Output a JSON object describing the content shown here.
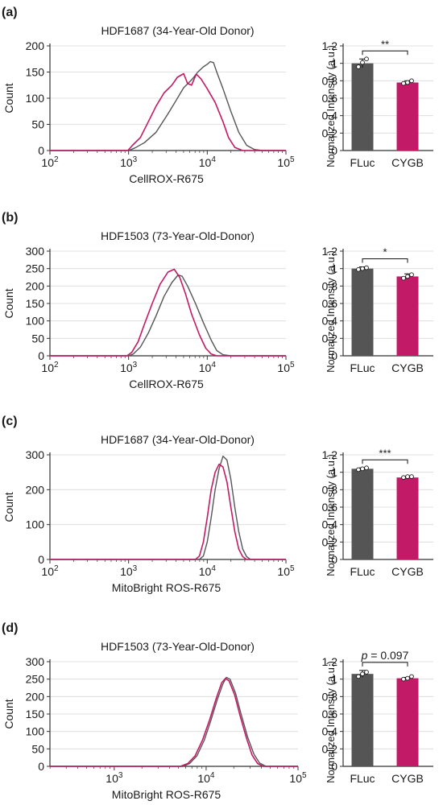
{
  "colors": {
    "fluc": "#555555",
    "cygb": "#c21a66",
    "axis": "#333333",
    "grid": "#d9d9d9"
  },
  "chart_data": [
    {
      "panel": "(a)",
      "histogram": {
        "type": "line",
        "title": "HDF1687 (34-Year-Old Donor)",
        "xlabel": "CellROX-R675",
        "ylabel": "Count",
        "xscale": "log",
        "xlim_log10": [
          2,
          5
        ],
        "ylim": [
          0,
          200
        ],
        "yticks": [
          0,
          50,
          100,
          150,
          200
        ],
        "xticks": [
          {
            "base": "10",
            "exp": "2",
            "log": 2
          },
          {
            "base": "10",
            "exp": "3",
            "log": 3
          },
          {
            "base": "10",
            "exp": "4",
            "log": 4
          },
          {
            "base": "10",
            "exp": "5",
            "log": 5
          }
        ],
        "grid": "horizontal",
        "series": [
          {
            "key": "fluc",
            "points": [
              [
                2.0,
                0
              ],
              [
                3.0,
                0
              ],
              [
                3.08,
                5
              ],
              [
                3.2,
                15
              ],
              [
                3.35,
                35
              ],
              [
                3.5,
                70
              ],
              [
                3.6,
                95
              ],
              [
                3.7,
                120
              ],
              [
                3.8,
                135
              ],
              [
                3.88,
                150
              ],
              [
                3.95,
                160
              ],
              [
                4.0,
                165
              ],
              [
                4.04,
                170
              ],
              [
                4.08,
                168
              ],
              [
                4.12,
                150
              ],
              [
                4.2,
                118
              ],
              [
                4.3,
                75
              ],
              [
                4.4,
                35
              ],
              [
                4.5,
                10
              ],
              [
                4.6,
                2
              ],
              [
                4.7,
                0
              ],
              [
                5.0,
                0
              ]
            ]
          },
          {
            "key": "cygb",
            "points": [
              [
                2.0,
                0
              ],
              [
                2.99,
                0
              ],
              [
                3.05,
                10
              ],
              [
                3.15,
                25
              ],
              [
                3.25,
                55
              ],
              [
                3.35,
                85
              ],
              [
                3.45,
                110
              ],
              [
                3.55,
                125
              ],
              [
                3.62,
                140
              ],
              [
                3.7,
                147
              ],
              [
                3.75,
                128
              ],
              [
                3.8,
                125
              ],
              [
                3.86,
                146
              ],
              [
                3.92,
                137
              ],
              [
                4.0,
                118
              ],
              [
                4.1,
                92
              ],
              [
                4.2,
                55
              ],
              [
                4.27,
                25
              ],
              [
                4.35,
                6
              ],
              [
                4.45,
                0
              ],
              [
                5.0,
                0
              ]
            ]
          }
        ]
      },
      "bar": {
        "type": "bar",
        "categories": [
          "FLuc",
          "CYGB"
        ],
        "values": [
          1.0,
          0.78
        ],
        "errors": [
          0.05,
          0.02
        ],
        "dots": [
          [
            0.96,
            1.01,
            1.05
          ],
          [
            0.77,
            0.78,
            0.8
          ]
        ],
        "ylabel": "Normalized Intensity (a.u.)",
        "ylim": [
          0,
          1.2
        ],
        "yticks": [
          "0",
          "0.2",
          "0.4",
          "0.6",
          "0.8",
          "1",
          "1.2"
        ],
        "significance": "**"
      }
    },
    {
      "panel": "(b)",
      "histogram": {
        "type": "line",
        "title": "HDF1503 (73-Year-Old-Donor)",
        "xlabel": "CellROX-R675",
        "ylabel": "Count",
        "xscale": "log",
        "xlim_log10": [
          2,
          5
        ],
        "ylim": [
          0,
          300
        ],
        "yticks": [
          0,
          50,
          100,
          150,
          200,
          250,
          300
        ],
        "xticks": [
          {
            "base": "10",
            "exp": "2",
            "log": 2
          },
          {
            "base": "10",
            "exp": "3",
            "log": 3
          },
          {
            "base": "10",
            "exp": "4",
            "log": 4
          },
          {
            "base": "10",
            "exp": "5",
            "log": 5
          }
        ],
        "grid": "horizontal",
        "series": [
          {
            "key": "fluc",
            "points": [
              [
                2.0,
                0
              ],
              [
                3.0,
                0
              ],
              [
                3.06,
                5
              ],
              [
                3.15,
                25
              ],
              [
                3.25,
                65
              ],
              [
                3.35,
                115
              ],
              [
                3.45,
                170
              ],
              [
                3.55,
                210
              ],
              [
                3.63,
                232
              ],
              [
                3.68,
                228
              ],
              [
                3.75,
                200
              ],
              [
                3.85,
                150
              ],
              [
                3.95,
                95
              ],
              [
                4.05,
                45
              ],
              [
                4.12,
                15
              ],
              [
                4.2,
                3
              ],
              [
                4.3,
                0
              ],
              [
                5.0,
                0
              ]
            ]
          },
          {
            "key": "cygb",
            "points": [
              [
                2.0,
                0
              ],
              [
                2.98,
                0
              ],
              [
                3.04,
                10
              ],
              [
                3.12,
                40
              ],
              [
                3.2,
                90
              ],
              [
                3.3,
                150
              ],
              [
                3.4,
                205
              ],
              [
                3.5,
                240
              ],
              [
                3.58,
                248
              ],
              [
                3.65,
                225
              ],
              [
                3.72,
                180
              ],
              [
                3.8,
                120
              ],
              [
                3.9,
                60
              ],
              [
                3.98,
                22
              ],
              [
                4.05,
                5
              ],
              [
                4.12,
                0
              ],
              [
                5.0,
                0
              ]
            ]
          }
        ]
      },
      "bar": {
        "type": "bar",
        "categories": [
          "FLuc",
          "CYGB"
        ],
        "values": [
          1.0,
          0.91
        ],
        "errors": [
          0.02,
          0.03
        ],
        "dots": [
          [
            0.99,
            1.0,
            1.01
          ],
          [
            0.89,
            0.91,
            0.93
          ]
        ],
        "ylabel": "Normalized Intensity (a.u.)",
        "ylim": [
          0,
          1.2
        ],
        "yticks": [
          "0",
          "0.2",
          "0.4",
          "0.6",
          "0.8",
          "1",
          "1.2"
        ],
        "significance": "*"
      }
    },
    {
      "panel": "(c)",
      "histogram": {
        "type": "line",
        "title": "HDF1687 (34-Year-Old-Donor)",
        "xlabel": "MitoBright ROS-R675",
        "ylabel": "Count",
        "xscale": "log",
        "xlim_log10": [
          2,
          5
        ],
        "ylim": [
          0,
          300
        ],
        "yticks": [
          0,
          100,
          200,
          300
        ],
        "xticks": [
          {
            "base": "10",
            "exp": "2",
            "log": 2
          },
          {
            "base": "10",
            "exp": "3",
            "log": 3
          },
          {
            "base": "10",
            "exp": "4",
            "log": 4
          },
          {
            "base": "10",
            "exp": "5",
            "log": 5
          }
        ],
        "grid": "horizontal",
        "series": [
          {
            "key": "fluc",
            "points": [
              [
                2.0,
                0
              ],
              [
                3.9,
                0
              ],
              [
                3.95,
                10
              ],
              [
                4.0,
                50
              ],
              [
                4.05,
                120
              ],
              [
                4.1,
                200
              ],
              [
                4.15,
                260
              ],
              [
                4.2,
                296
              ],
              [
                4.25,
                285
              ],
              [
                4.3,
                230
              ],
              [
                4.35,
                150
              ],
              [
                4.4,
                80
              ],
              [
                4.45,
                30
              ],
              [
                4.5,
                8
              ],
              [
                4.55,
                0
              ],
              [
                5.0,
                0
              ]
            ]
          },
          {
            "key": "cygb",
            "points": [
              [
                2.0,
                0
              ],
              [
                3.85,
                0
              ],
              [
                3.9,
                10
              ],
              [
                3.95,
                50
              ],
              [
                4.0,
                120
              ],
              [
                4.05,
                200
              ],
              [
                4.1,
                250
              ],
              [
                4.15,
                273
              ],
              [
                4.2,
                265
              ],
              [
                4.25,
                222
              ],
              [
                4.3,
                150
              ],
              [
                4.35,
                80
              ],
              [
                4.4,
                30
              ],
              [
                4.45,
                8
              ],
              [
                4.5,
                0
              ],
              [
                5.0,
                0
              ]
            ]
          }
        ]
      },
      "bar": {
        "type": "bar",
        "categories": [
          "FLuc",
          "CYGB"
        ],
        "values": [
          1.04,
          0.94
        ],
        "errors": [
          0.01,
          0.01
        ],
        "dots": [
          [
            1.03,
            1.04,
            1.05
          ],
          [
            0.94,
            0.95,
            0.95
          ]
        ],
        "ylabel": "Normalized Intensity (a.u.)",
        "ylim": [
          0,
          1.2
        ],
        "yticks": [
          "0",
          "0.2",
          "0.4",
          "0.6",
          "0.8",
          "1",
          "1.2"
        ],
        "significance": "***"
      }
    },
    {
      "panel": "(d)",
      "histogram": {
        "type": "line",
        "title": "HDF1503 (73-Year-Old-Donor)",
        "xlabel": "MitoBright ROS-R675",
        "ylabel": "Count",
        "xscale": "log",
        "xlim_log10": [
          2.3,
          5
        ],
        "ylim": [
          0,
          300
        ],
        "yticks": [
          0,
          50,
          100,
          150,
          200,
          250,
          300
        ],
        "xticks": [
          {
            "base": "10",
            "exp": "3",
            "log": 3
          },
          {
            "base": "10",
            "exp": "4",
            "log": 4
          },
          {
            "base": "10",
            "exp": "5",
            "log": 5
          }
        ],
        "grid": "horizontal",
        "series": [
          {
            "key": "fluc",
            "points": [
              [
                2.3,
                0
              ],
              [
                3.75,
                0
              ],
              [
                3.82,
                8
              ],
              [
                3.9,
                30
              ],
              [
                3.98,
                75
              ],
              [
                4.05,
                130
              ],
              [
                4.12,
                190
              ],
              [
                4.18,
                235
              ],
              [
                4.22,
                255
              ],
              [
                4.26,
                250
              ],
              [
                4.32,
                210
              ],
              [
                4.38,
                150
              ],
              [
                4.45,
                85
              ],
              [
                4.52,
                35
              ],
              [
                4.58,
                10
              ],
              [
                4.65,
                0
              ],
              [
                5.0,
                0
              ]
            ]
          },
          {
            "key": "cygb",
            "points": [
              [
                2.3,
                0
              ],
              [
                3.72,
                0
              ],
              [
                3.8,
                8
              ],
              [
                3.88,
                30
              ],
              [
                3.96,
                75
              ],
              [
                4.04,
                135
              ],
              [
                4.11,
                195
              ],
              [
                4.17,
                240
              ],
              [
                4.21,
                252
              ],
              [
                4.25,
                245
              ],
              [
                4.31,
                205
              ],
              [
                4.37,
                145
              ],
              [
                4.44,
                80
              ],
              [
                4.5,
                32
              ],
              [
                4.56,
                8
              ],
              [
                4.62,
                0
              ],
              [
                5.0,
                0
              ]
            ]
          }
        ]
      },
      "bar": {
        "type": "bar",
        "categories": [
          "FLuc",
          "CYGB"
        ],
        "values": [
          1.06,
          1.01
        ],
        "errors": [
          0.04,
          0.01
        ],
        "dots": [
          [
            1.03,
            1.06,
            1.08
          ],
          [
            1.0,
            1.01,
            1.03
          ]
        ],
        "ylabel": "Normalized Intensity (a.u.)",
        "ylim": [
          0,
          1.2
        ],
        "yticks": [
          "0",
          "0.2",
          "0.4",
          "0.6",
          "0.8",
          "1",
          "1.2"
        ],
        "significance_prefix": "p",
        "significance": " = 0.097"
      }
    }
  ]
}
